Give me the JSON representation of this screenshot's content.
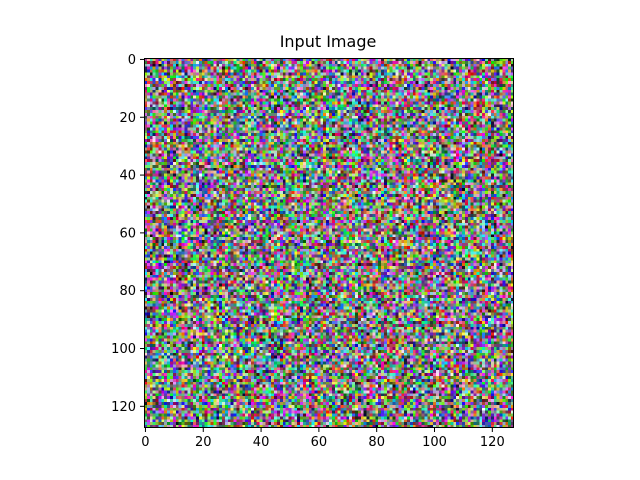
{
  "chart_data": {
    "type": "heatmap",
    "title": "Input Image",
    "xlabel": "",
    "ylabel": "",
    "image_size": [
      128,
      128
    ],
    "color_mode": "rgb-random-noise",
    "xlim": [
      -0.5,
      127.5
    ],
    "ylim": [
      127.5,
      -0.5
    ],
    "xticks": [
      0,
      20,
      40,
      60,
      80,
      100,
      120
    ],
    "yticks": [
      0,
      20,
      40,
      60,
      80,
      100,
      120
    ],
    "xtick_labels": [
      "0",
      "20",
      "40",
      "60",
      "80",
      "100",
      "120"
    ],
    "ytick_labels": [
      "0",
      "20",
      "40",
      "60",
      "80",
      "100",
      "120"
    ],
    "grid": false,
    "legend": "none",
    "colors": {
      "frame": "#000000",
      "background": "#ffffff"
    }
  }
}
